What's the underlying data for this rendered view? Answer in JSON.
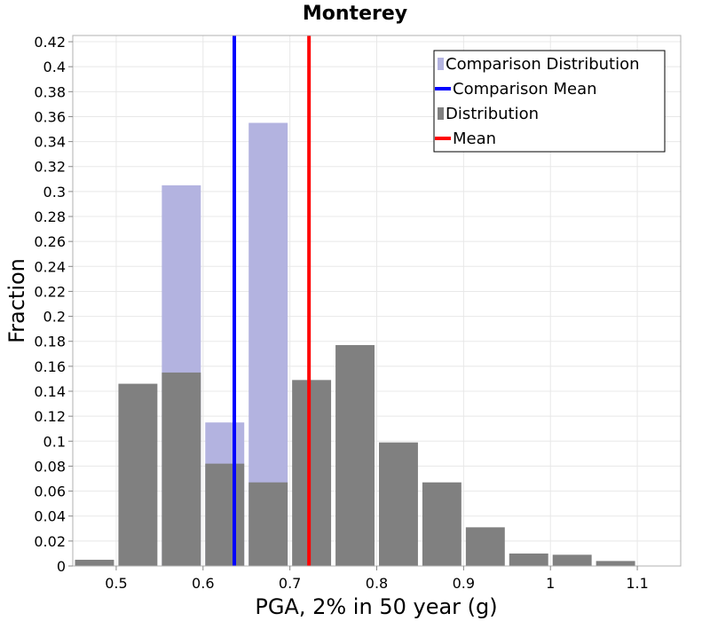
{
  "chart_data": {
    "type": "bar",
    "title": "Monterey",
    "xlabel": "PGA, 2% in 50 year (g)",
    "ylabel": "Fraction",
    "xlim": [
      0.45,
      1.15
    ],
    "ylim": [
      0,
      0.425
    ],
    "x_ticks": [
      0.5,
      0.6,
      0.7,
      0.8,
      0.9,
      1,
      1.1
    ],
    "x_tick_labels": [
      "0.5",
      "0.6",
      "0.7",
      "0.8",
      "0.9",
      "1",
      "1.1"
    ],
    "y_ticks": [
      0,
      0.02,
      0.04,
      0.06,
      0.08,
      0.1,
      0.12,
      0.14,
      0.16,
      0.18,
      0.2,
      0.22,
      0.24,
      0.26,
      0.28,
      0.3,
      0.32,
      0.34,
      0.36,
      0.38,
      0.4,
      0.42
    ],
    "y_tick_labels": [
      "0",
      "0.02",
      "0.04",
      "0.06",
      "0.08",
      "0.1",
      "0.12",
      "0.14",
      "0.16",
      "0.18",
      "0.2",
      "0.22",
      "0.24",
      "0.26",
      "0.28",
      "0.3",
      "0.32",
      "0.34",
      "0.36",
      "0.38",
      "0.4",
      "0.42"
    ],
    "bin_width": 0.05,
    "grid": true,
    "legend_position": "top-right",
    "series": [
      {
        "name": "Comparison Distribution",
        "kind": "histogram",
        "color": "#b3b3e0",
        "bins": [
          {
            "x": 0.575,
            "value": 0.305
          },
          {
            "x": 0.625,
            "value": 0.115
          },
          {
            "x": 0.675,
            "value": 0.355
          }
        ]
      },
      {
        "name": "Comparison Mean",
        "kind": "vline",
        "color": "#0000ff",
        "x": 0.636
      },
      {
        "name": "Distribution",
        "kind": "histogram",
        "color": "#808080",
        "bins": [
          {
            "x": 0.475,
            "value": 0.005
          },
          {
            "x": 0.525,
            "value": 0.146
          },
          {
            "x": 0.575,
            "value": 0.155
          },
          {
            "x": 0.625,
            "value": 0.082
          },
          {
            "x": 0.675,
            "value": 0.067
          },
          {
            "x": 0.725,
            "value": 0.149
          },
          {
            "x": 0.775,
            "value": 0.177
          },
          {
            "x": 0.825,
            "value": 0.099
          },
          {
            "x": 0.875,
            "value": 0.067
          },
          {
            "x": 0.925,
            "value": 0.031
          },
          {
            "x": 0.975,
            "value": 0.01
          },
          {
            "x": 1.025,
            "value": 0.009
          },
          {
            "x": 1.075,
            "value": 0.004
          }
        ]
      },
      {
        "name": "Mean",
        "kind": "vline",
        "color": "#ff0000",
        "x": 0.722
      }
    ]
  }
}
